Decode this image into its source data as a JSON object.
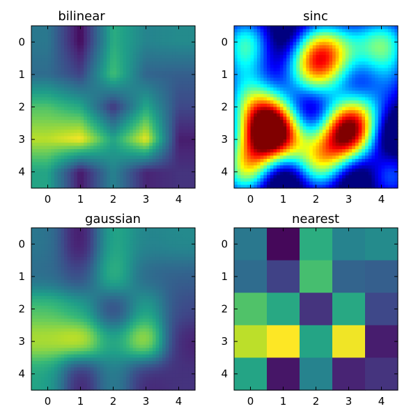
{
  "chart_data": {
    "type": "heatmap",
    "colormap": "viridis",
    "data": [
      [
        0.4,
        0.02,
        0.62,
        0.45,
        0.48
      ],
      [
        0.35,
        0.2,
        0.7,
        0.32,
        0.3
      ],
      [
        0.72,
        0.6,
        0.15,
        0.6,
        0.22
      ],
      [
        0.9,
        1.0,
        0.58,
        0.98,
        0.08
      ],
      [
        0.58,
        0.06,
        0.45,
        0.1,
        0.15
      ]
    ],
    "xlim": [
      -0.5,
      4.5
    ],
    "ylim": [
      4.5,
      -0.5
    ],
    "xticks": [
      "0",
      "1",
      "2",
      "3",
      "4"
    ],
    "yticks": [
      "0",
      "1",
      "2",
      "3",
      "4"
    ],
    "panels": [
      {
        "title": "bilinear",
        "interpolation": "bilinear"
      },
      {
        "title": "sinc",
        "interpolation": "sinc",
        "colormap": "jet"
      },
      {
        "title": "gaussian",
        "interpolation": "gaussian"
      },
      {
        "title": "nearest",
        "interpolation": "nearest"
      }
    ]
  }
}
